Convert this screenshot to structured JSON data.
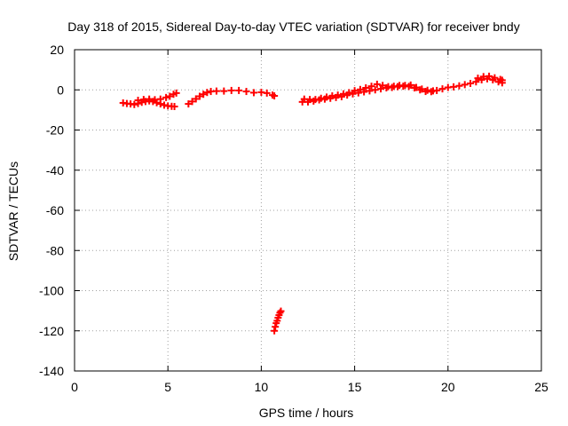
{
  "chart_data": {
    "type": "scatter",
    "title": "Day 318 of 2015, Sidereal Day-to-day VTEC variation (SDTVAR) for receiver bndy",
    "xlabel": "GPS time / hours",
    "ylabel": "SDTVAR / TECUs",
    "xlim": [
      0,
      25
    ],
    "ylim": [
      -140,
      20
    ],
    "xticks": [
      0,
      5,
      10,
      15,
      20,
      25
    ],
    "yticks": [
      -140,
      -120,
      -100,
      -80,
      -60,
      -40,
      -20,
      0,
      20
    ],
    "grid": true,
    "marker": "plus",
    "color": "#ff0000",
    "series": [
      {
        "points": [
          [
            2.6,
            -6.5
          ],
          [
            2.8,
            -6.8
          ],
          [
            3.0,
            -7.0
          ],
          [
            3.2,
            -7.3
          ],
          [
            3.4,
            -6.8
          ],
          [
            3.6,
            -6.2
          ],
          [
            3.8,
            -5.8
          ],
          [
            4.0,
            -5.5
          ],
          [
            4.2,
            -5.8
          ],
          [
            4.4,
            -6.4
          ],
          [
            4.6,
            -7.0
          ],
          [
            4.8,
            -7.6
          ],
          [
            5.0,
            -8.0
          ],
          [
            5.2,
            -8.2
          ],
          [
            5.35,
            -8.3
          ],
          [
            3.4,
            -5.2
          ],
          [
            3.7,
            -4.8
          ],
          [
            4.0,
            -4.6
          ],
          [
            4.3,
            -4.9
          ],
          [
            4.6,
            -4.6
          ],
          [
            4.9,
            -3.8
          ],
          [
            5.1,
            -3.2
          ],
          [
            5.3,
            -2.2
          ],
          [
            5.45,
            -1.6
          ]
        ]
      },
      {
        "points": [
          [
            6.1,
            -7.0
          ],
          [
            6.3,
            -5.8
          ],
          [
            6.5,
            -4.5
          ],
          [
            6.7,
            -3.2
          ],
          [
            6.9,
            -2.2
          ],
          [
            7.1,
            -1.3
          ],
          [
            7.3,
            -0.8
          ],
          [
            7.6,
            -0.6
          ],
          [
            8.0,
            -0.6
          ],
          [
            8.4,
            -0.3
          ],
          [
            8.8,
            -0.3
          ],
          [
            9.2,
            -0.8
          ],
          [
            9.6,
            -1.4
          ],
          [
            10.0,
            -1.2
          ],
          [
            10.3,
            -1.6
          ],
          [
            10.6,
            -2.6
          ],
          [
            10.7,
            -3.0
          ]
        ]
      },
      {
        "points": [
          [
            10.7,
            -120.0
          ],
          [
            10.75,
            -118.0
          ],
          [
            10.8,
            -116.2
          ],
          [
            10.85,
            -115.0
          ],
          [
            10.9,
            -113.5
          ],
          [
            10.95,
            -112.2
          ],
          [
            11.0,
            -111.0
          ],
          [
            11.05,
            -110.2
          ]
        ]
      },
      {
        "points": [
          [
            12.2,
            -6.0
          ],
          [
            12.5,
            -6.0
          ],
          [
            12.8,
            -5.6
          ],
          [
            13.1,
            -5.0
          ],
          [
            13.4,
            -4.6
          ],
          [
            13.7,
            -4.2
          ],
          [
            14.0,
            -3.8
          ],
          [
            14.3,
            -3.4
          ],
          [
            14.6,
            -2.6
          ],
          [
            14.9,
            -2.0
          ],
          [
            15.2,
            -1.5
          ],
          [
            15.5,
            -1.0
          ],
          [
            15.8,
            -0.5
          ],
          [
            16.1,
            0.0
          ],
          [
            16.4,
            0.5
          ],
          [
            16.7,
            1.0
          ],
          [
            17.0,
            1.2
          ],
          [
            17.3,
            1.6
          ],
          [
            17.6,
            1.8
          ],
          [
            17.9,
            1.7
          ],
          [
            18.2,
            1.0
          ],
          [
            18.5,
            0.0
          ],
          [
            18.8,
            -0.8
          ],
          [
            19.1,
            -0.9
          ],
          [
            19.4,
            -0.3
          ],
          [
            19.7,
            0.5
          ],
          [
            20.0,
            1.2
          ],
          [
            20.3,
            1.5
          ],
          [
            20.6,
            2.0
          ],
          [
            20.9,
            2.6
          ],
          [
            21.2,
            3.2
          ],
          [
            21.5,
            4.0
          ],
          [
            21.8,
            5.0
          ],
          [
            22.1,
            5.5
          ],
          [
            22.4,
            5.0
          ],
          [
            22.7,
            4.0
          ],
          [
            22.9,
            3.5
          ],
          [
            12.3,
            -4.6
          ],
          [
            12.6,
            -4.8
          ],
          [
            12.9,
            -4.8
          ],
          [
            13.2,
            -4.2
          ],
          [
            13.5,
            -3.6
          ],
          [
            13.8,
            -3.0
          ],
          [
            14.1,
            -2.6
          ],
          [
            14.4,
            -2.0
          ],
          [
            14.7,
            -1.4
          ],
          [
            15.0,
            -0.4
          ],
          [
            15.3,
            0.2
          ],
          [
            15.6,
            1.0
          ],
          [
            15.9,
            1.8
          ],
          [
            16.2,
            2.8
          ],
          [
            16.5,
            2.2
          ],
          [
            16.8,
            1.6
          ],
          [
            17.1,
            1.8
          ],
          [
            17.4,
            2.2
          ],
          [
            17.7,
            2.2
          ],
          [
            18.0,
            2.4
          ],
          [
            18.3,
            1.2
          ],
          [
            18.6,
            0.4
          ],
          [
            18.9,
            -0.2
          ],
          [
            19.2,
            -0.5
          ],
          [
            21.6,
            5.8
          ],
          [
            21.9,
            6.6
          ],
          [
            22.2,
            6.8
          ],
          [
            22.5,
            6.0
          ],
          [
            22.8,
            5.2
          ],
          [
            22.9,
            4.8
          ]
        ]
      }
    ]
  }
}
